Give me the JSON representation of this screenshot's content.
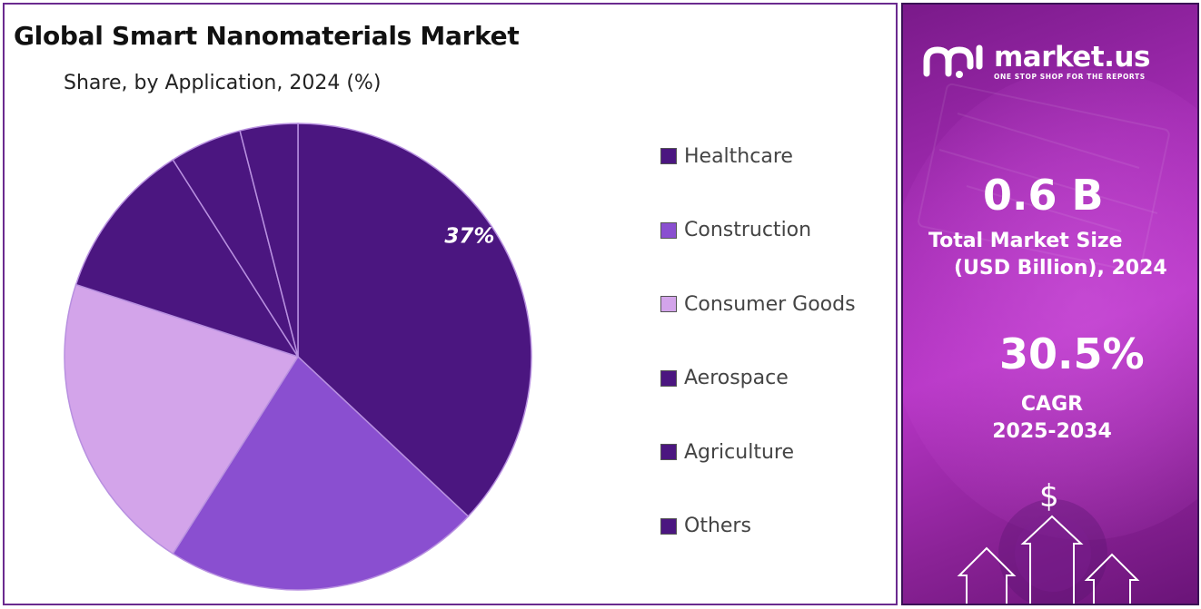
{
  "chart_data": {
    "type": "pie",
    "title": "Global Smart Nanomaterials Market",
    "subtitle": "Share, by Application, 2024 (%)",
    "categories": [
      "Healthcare",
      "Construction",
      "Consumer Goods",
      "Aerospace",
      "Agriculture",
      "Others"
    ],
    "values": [
      37,
      22,
      21,
      11,
      5,
      4
    ],
    "data_labels": [
      "37%",
      "",
      "",
      "",
      "",
      ""
    ],
    "colors": [
      "#4b1680",
      "#8a4fd0",
      "#d3a4ea",
      "#4b1680",
      "#4b1680",
      "#4b1680"
    ],
    "legend_placement": "right"
  },
  "sidebar": {
    "brand": {
      "name": "market.us",
      "tagline": "ONE STOP SHOP FOR THE REPORTS",
      "logo_icon": "market-us-logo-icon"
    },
    "market_size": {
      "value": "0.6 B",
      "label_line1": "Total Market Size",
      "label_line2": "(USD Billion), 2024"
    },
    "cagr": {
      "value": "30.5%",
      "label_line1": "CAGR",
      "label_line2": "2025-2034"
    },
    "decor": {
      "currency_symbol": "$",
      "icon": "growth-arrows-icon"
    }
  }
}
